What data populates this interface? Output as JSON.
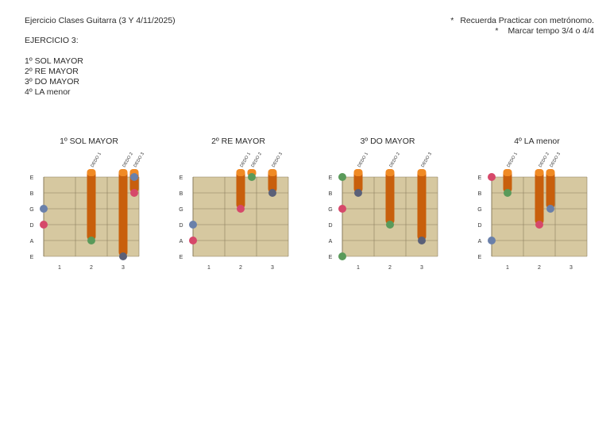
{
  "header": {
    "title": "Ejercicio Clases Guitarra (3 Y 4/11/2025)",
    "exercise_heading": "EJERCICIO 3:",
    "items": [
      "1º SOL MAYOR",
      "2º RE MAYOR",
      "3º DO MAYOR",
      "4º LA menor"
    ],
    "notes": [
      {
        "bullet": "*",
        "text": "Recuerda Practicar con metrónomo."
      },
      {
        "bullet": "*",
        "text": "Marcar tempo 3/4 o 4/4"
      }
    ]
  },
  "colors": {
    "fretboard": "#d6c8a0",
    "fret_line": "#8a7d5c",
    "finger": "#c85f0c",
    "finger_top": "#f08a24",
    "dot_blue": "#6a80aa",
    "dot_pink": "#d6486a",
    "dot_green": "#5a9a5a",
    "dot_navy": "#5a6078"
  },
  "string_labels": [
    "E",
    "B",
    "G",
    "D",
    "A",
    "E"
  ],
  "fret_labels": [
    "1",
    "2",
    "3"
  ],
  "finger_label": "DEDO",
  "diagrams": [
    {
      "title": "1º SOL MAYOR",
      "fingers": [
        {
          "label": "DEDO 1",
          "fret": 2,
          "from": 0,
          "to": 4,
          "dot": "green"
        },
        {
          "label": "DEDO 2",
          "fret": 3,
          "from": 0,
          "to": 5,
          "dot": "navy"
        },
        {
          "label": "DEDO 3",
          "fret": 3.35,
          "from": 0,
          "to": 1,
          "dot": "pink",
          "extra": {
            "string": 0,
            "dot": "blue"
          }
        }
      ],
      "open": [
        {
          "string": 2,
          "dot": "blue"
        },
        {
          "string": 3,
          "dot": "pink"
        }
      ]
    },
    {
      "title": "2º RE MAYOR",
      "fingers": [
        {
          "label": "DEDO 1",
          "fret": 2,
          "from": 0,
          "to": 2,
          "dot": "pink"
        },
        {
          "label": "DEDO 2",
          "fret": 2.35,
          "from": 0,
          "to": 0,
          "dot": "green"
        },
        {
          "label": "DEDO 3",
          "fret": 3,
          "from": 0,
          "to": 1,
          "dot": "navy"
        }
      ],
      "open": [
        {
          "string": 3,
          "dot": "blue"
        },
        {
          "string": 4,
          "dot": "pink"
        }
      ]
    },
    {
      "title": "3º DO MAYOR",
      "fingers": [
        {
          "label": "DEDO 1",
          "fret": 1,
          "from": 0,
          "to": 1,
          "dot": "navy"
        },
        {
          "label": "DEDO 2",
          "fret": 2,
          "from": 0,
          "to": 3,
          "dot": "green"
        },
        {
          "label": "DEDO 3",
          "fret": 3,
          "from": 0,
          "to": 4,
          "dot": "navy"
        }
      ],
      "open": [
        {
          "string": 0,
          "dot": "green"
        },
        {
          "string": 2,
          "dot": "pink"
        },
        {
          "string": 5,
          "dot": "green"
        }
      ]
    },
    {
      "title": "4º LA menor",
      "fingers": [
        {
          "label": "DEDO 1",
          "fret": 1,
          "from": 0,
          "to": 1,
          "dot": "green"
        },
        {
          "label": "DEDO 2",
          "fret": 2,
          "from": 0,
          "to": 3,
          "dot": "pink"
        },
        {
          "label": "DEDO 3",
          "fret": 2.35,
          "from": 0,
          "to": 2,
          "dot": "blue"
        }
      ],
      "open": [
        {
          "string": 0,
          "dot": "pink"
        },
        {
          "string": 4,
          "dot": "blue"
        }
      ]
    }
  ]
}
